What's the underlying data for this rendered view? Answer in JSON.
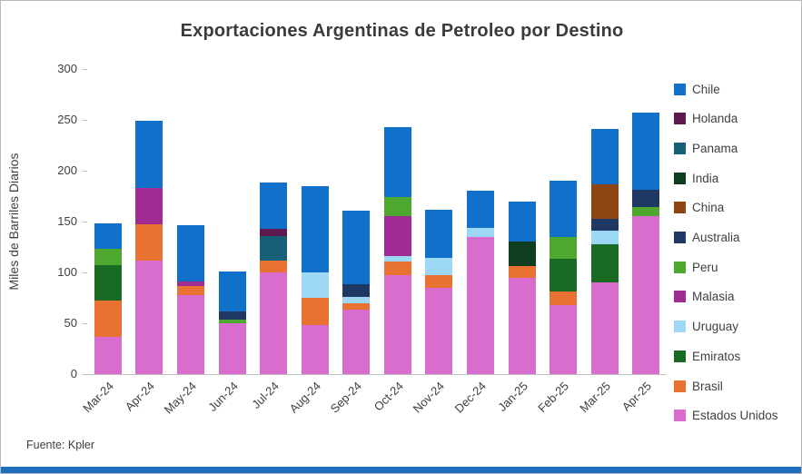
{
  "title": "Exportaciones Argentinas de Petroleo por Destino",
  "source_note": "Fuente: Kpler",
  "window": {
    "bottom_bar_color": "#1f6fc1"
  },
  "chart_data": {
    "type": "bar",
    "stacked": true,
    "title": "Exportaciones Argentinas de Petroleo por Destino",
    "ylabel": "Miles de Barriles Diarios",
    "xlabel": "",
    "ylim": [
      0,
      300
    ],
    "yticks": [
      0,
      50,
      100,
      150,
      200,
      250,
      300
    ],
    "grid": false,
    "legend_position": "right",
    "legend_order": "reverse-of-series",
    "categories": [
      "Mar-24",
      "Apr-24",
      "May-24",
      "Jun-24",
      "Jul-24",
      "Aug-24",
      "Sep-24",
      "Oct-24",
      "Nov-24",
      "Dec-24",
      "Jan-25",
      "Feb-25",
      "Mar-25",
      "Apr-25"
    ],
    "series": [
      {
        "name": "Estados Unidos",
        "color": "#d86dcd",
        "values": [
          37,
          112,
          78,
          50,
          100,
          48,
          63,
          97,
          85,
          135,
          95,
          68,
          90,
          155
        ]
      },
      {
        "name": "Brasil",
        "color": "#e97132",
        "values": [
          35,
          35,
          9,
          0,
          12,
          27,
          7,
          14,
          12,
          0,
          11,
          13,
          0,
          0
        ]
      },
      {
        "name": "Emiratos",
        "color": "#196b24",
        "values": [
          35,
          0,
          0,
          0,
          0,
          0,
          0,
          0,
          0,
          0,
          0,
          32,
          38,
          0
        ]
      },
      {
        "name": "Uruguay",
        "color": "#9cd7f4",
        "values": [
          0,
          0,
          0,
          0,
          0,
          25,
          6,
          5,
          17,
          9,
          0,
          0,
          13,
          0
        ]
      },
      {
        "name": "Malasia",
        "color": "#a02b93",
        "values": [
          0,
          36,
          4,
          0,
          0,
          0,
          0,
          39,
          0,
          0,
          0,
          0,
          0,
          0
        ]
      },
      {
        "name": "Peru",
        "color": "#4ea72e",
        "values": [
          16,
          0,
          0,
          4,
          0,
          0,
          0,
          19,
          0,
          0,
          0,
          22,
          0,
          9
        ]
      },
      {
        "name": "Australia",
        "color": "#1f3864",
        "values": [
          0,
          0,
          0,
          8,
          0,
          0,
          12,
          0,
          0,
          0,
          0,
          0,
          12,
          17
        ]
      },
      {
        "name": "China",
        "color": "#8f4511",
        "values": [
          0,
          0,
          0,
          0,
          0,
          0,
          0,
          0,
          0,
          0,
          0,
          0,
          34,
          0
        ]
      },
      {
        "name": "India",
        "color": "#0e3e1f",
        "values": [
          0,
          0,
          0,
          0,
          0,
          0,
          0,
          0,
          0,
          0,
          24,
          0,
          0,
          0
        ]
      },
      {
        "name": "Panama",
        "color": "#155f77",
        "values": [
          0,
          0,
          0,
          0,
          24,
          0,
          0,
          0,
          0,
          0,
          0,
          0,
          0,
          0
        ]
      },
      {
        "name": "Holanda",
        "color": "#5e1a4f",
        "values": [
          0,
          0,
          0,
          0,
          7,
          0,
          0,
          0,
          0,
          0,
          0,
          0,
          0,
          0
        ]
      },
      {
        "name": "Chile",
        "color": "#1170c9",
        "values": [
          25,
          66,
          55,
          39,
          45,
          85,
          73,
          69,
          48,
          36,
          40,
          55,
          54,
          76
        ]
      }
    ]
  }
}
